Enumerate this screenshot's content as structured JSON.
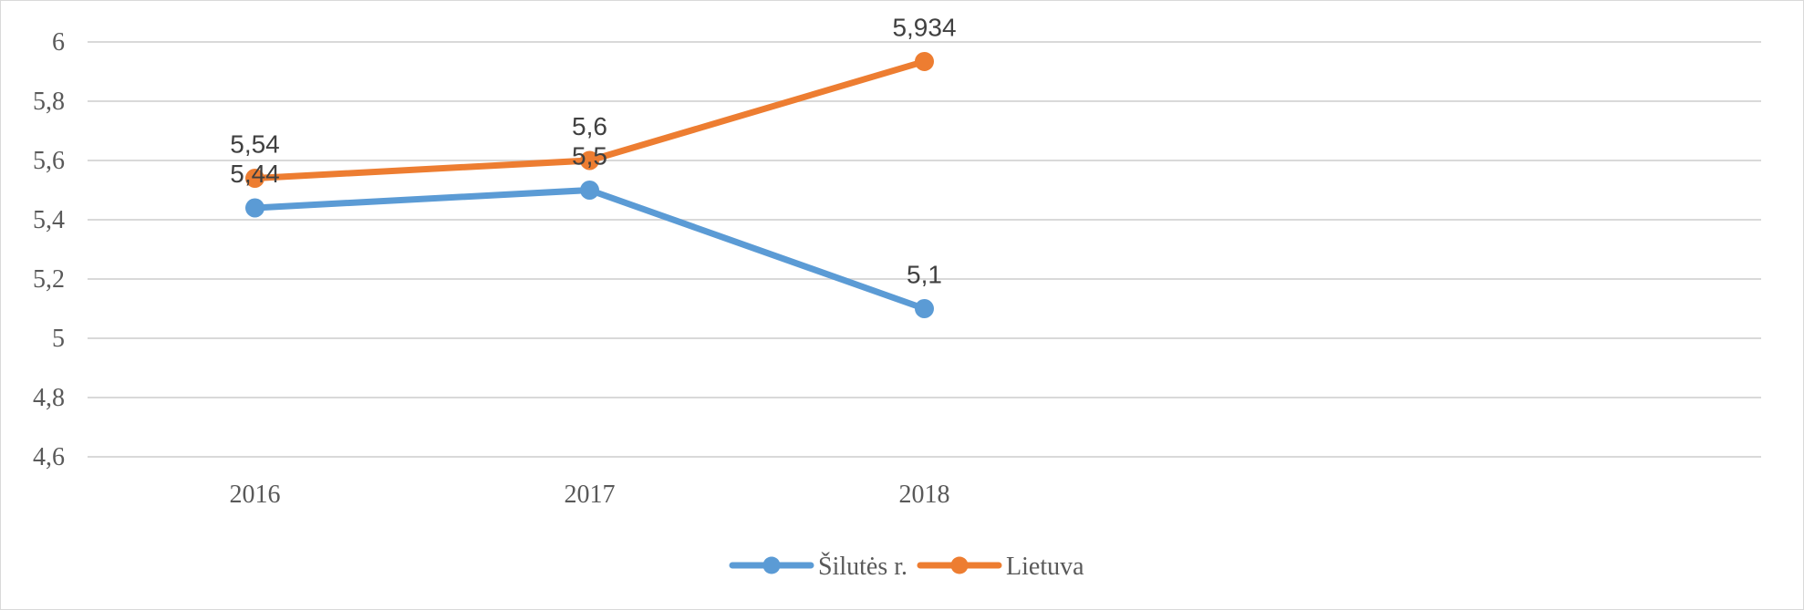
{
  "chart_data": {
    "type": "line",
    "categories": [
      "2016",
      "2017",
      "2018"
    ],
    "ylim": [
      4.6,
      6
    ],
    "yticks": [
      4.6,
      4.8,
      5,
      5.2,
      5.4,
      5.6,
      5.8,
      6
    ],
    "ytick_labels": [
      "4,6",
      "4,8",
      "5",
      "5,2",
      "5,4",
      "5,6",
      "5,8",
      "6"
    ],
    "grid": true,
    "legend_position": "bottom",
    "series": [
      {
        "name": "Šilutės r.",
        "color": "#5b9bd5",
        "values": [
          5.44,
          5.5,
          5.1
        ],
        "labels": [
          "5,44",
          "5,5",
          "5,1"
        ]
      },
      {
        "name": "Lietuva",
        "color": "#ed7d31",
        "values": [
          5.54,
          5.6,
          5.934
        ],
        "labels": [
          "5,54",
          "5,6",
          "5,934"
        ]
      }
    ]
  }
}
